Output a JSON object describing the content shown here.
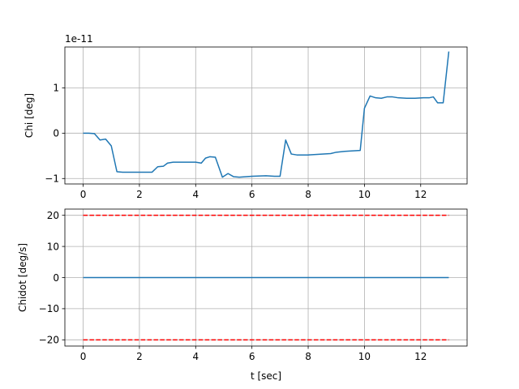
{
  "chart_data": [
    {
      "type": "line",
      "ylabel": "Chi [deg]",
      "xlabel": "",
      "offset_text": "1e-11",
      "xlim": [
        -0.65,
        13.65
      ],
      "ylim": [
        -1.12,
        1.9
      ],
      "grid": true,
      "x_ticks": [
        0,
        2,
        4,
        6,
        8,
        10,
        12
      ],
      "y_ticks": [
        -1,
        0,
        1
      ],
      "series": [
        {
          "color": "#1f77b4",
          "style": "solid",
          "points": [
            [
              0.0,
              0.0
            ],
            [
              0.2,
              0.0
            ],
            [
              0.4,
              -0.01
            ],
            [
              0.6,
              -0.15
            ],
            [
              0.8,
              -0.13
            ],
            [
              1.0,
              -0.28
            ],
            [
              1.2,
              -0.85
            ],
            [
              1.4,
              -0.86
            ],
            [
              1.7,
              -0.86
            ],
            [
              2.0,
              -0.86
            ],
            [
              2.2,
              -0.86
            ],
            [
              2.45,
              -0.86
            ],
            [
              2.65,
              -0.74
            ],
            [
              2.85,
              -0.73
            ],
            [
              3.0,
              -0.66
            ],
            [
              3.2,
              -0.64
            ],
            [
              3.5,
              -0.64
            ],
            [
              3.8,
              -0.64
            ],
            [
              4.0,
              -0.64
            ],
            [
              4.2,
              -0.66
            ],
            [
              4.35,
              -0.55
            ],
            [
              4.5,
              -0.52
            ],
            [
              4.7,
              -0.53
            ],
            [
              4.95,
              -0.97
            ],
            [
              5.15,
              -0.89
            ],
            [
              5.35,
              -0.96
            ],
            [
              5.55,
              -0.97
            ],
            [
              6.0,
              -0.95
            ],
            [
              6.5,
              -0.94
            ],
            [
              6.8,
              -0.95
            ],
            [
              7.0,
              -0.95
            ],
            [
              7.2,
              -0.15
            ],
            [
              7.4,
              -0.46
            ],
            [
              7.6,
              -0.48
            ],
            [
              8.0,
              -0.48
            ],
            [
              8.5,
              -0.46
            ],
            [
              8.8,
              -0.45
            ],
            [
              9.0,
              -0.42
            ],
            [
              9.3,
              -0.4
            ],
            [
              9.6,
              -0.39
            ],
            [
              9.85,
              -0.38
            ],
            [
              10.0,
              0.55
            ],
            [
              10.2,
              0.82
            ],
            [
              10.4,
              0.78
            ],
            [
              10.6,
              0.77
            ],
            [
              10.8,
              0.8
            ],
            [
              11.0,
              0.8
            ],
            [
              11.2,
              0.78
            ],
            [
              11.5,
              0.77
            ],
            [
              11.8,
              0.77
            ],
            [
              12.1,
              0.78
            ],
            [
              12.3,
              0.78
            ],
            [
              12.45,
              0.8
            ],
            [
              12.6,
              0.67
            ],
            [
              12.8,
              0.67
            ],
            [
              13.0,
              1.8
            ]
          ]
        }
      ]
    },
    {
      "type": "line",
      "ylabel": "Chidot [deg/s]",
      "xlabel": "t [sec]",
      "xlim": [
        -0.65,
        13.65
      ],
      "ylim": [
        -22,
        22
      ],
      "grid": true,
      "x_ticks": [
        0,
        2,
        4,
        6,
        8,
        10,
        12
      ],
      "y_ticks": [
        -20,
        -10,
        0,
        10,
        20
      ],
      "series": [
        {
          "color": "#1f77b4",
          "style": "solid",
          "points": [
            [
              0.0,
              0.0
            ],
            [
              13.0,
              0.0
            ]
          ]
        },
        {
          "color": "#ff0000",
          "style": "dashed",
          "points": [
            [
              0.0,
              20.0
            ],
            [
              13.0,
              20.0
            ]
          ]
        },
        {
          "color": "#ff0000",
          "style": "dashed",
          "points": [
            [
              0.0,
              -20.0
            ],
            [
              13.0,
              -20.0
            ]
          ]
        }
      ]
    }
  ]
}
